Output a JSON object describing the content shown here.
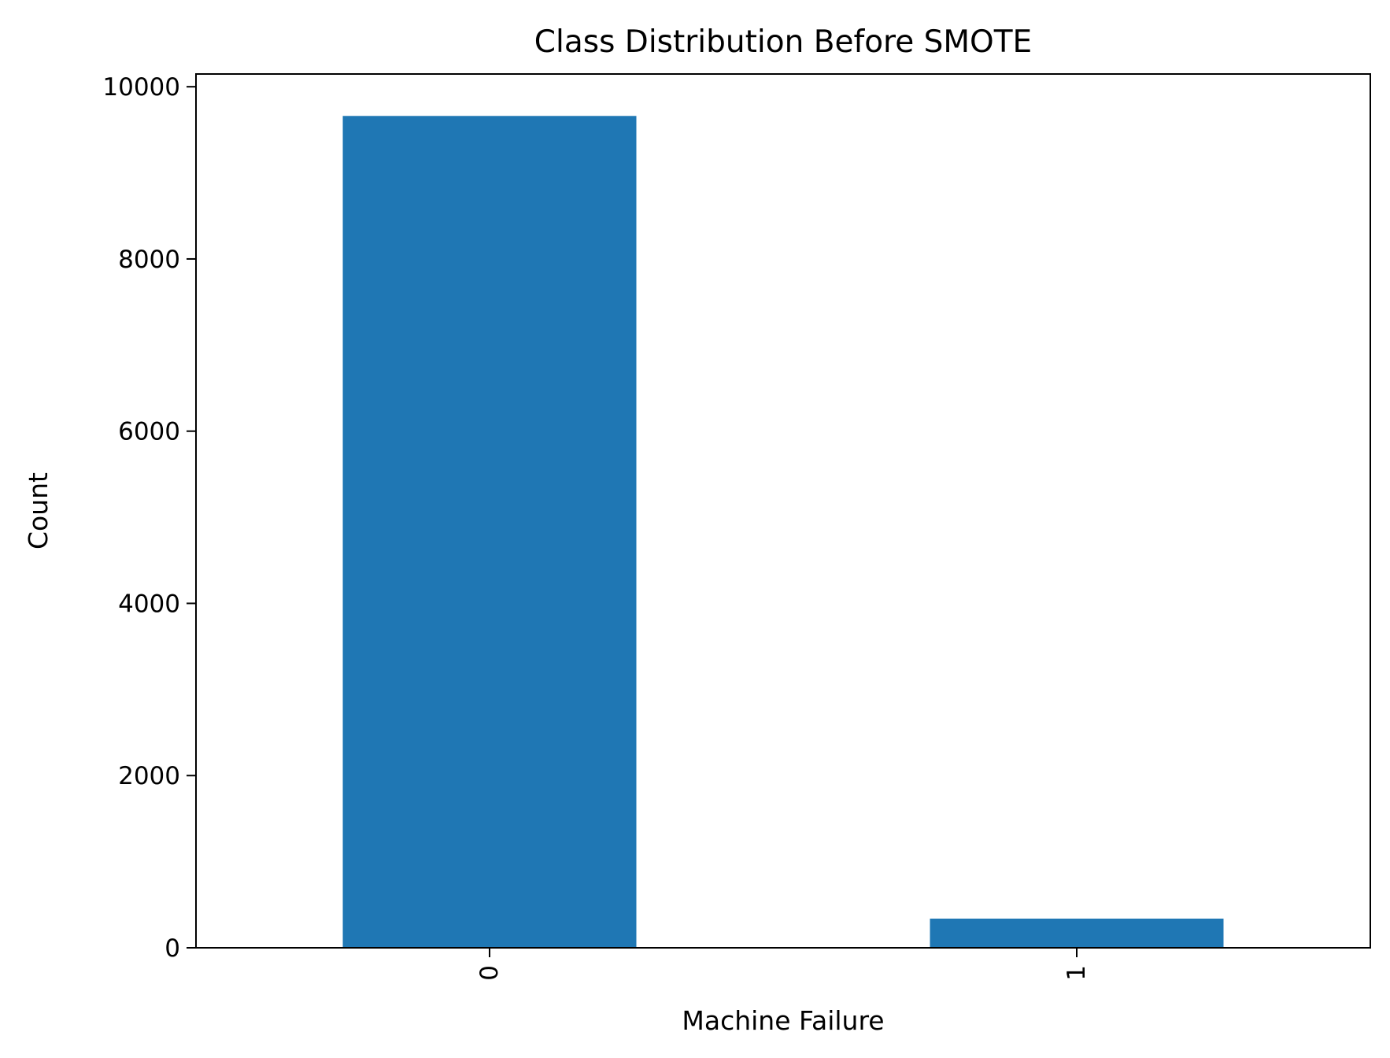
{
  "chart_data": {
    "type": "bar",
    "title": "Class Distribution Before SMOTE",
    "xlabel": "Machine Failure",
    "ylabel": "Count",
    "categories": [
      "0",
      "1"
    ],
    "values": [
      9661,
      339
    ],
    "ylim": [
      0,
      10148
    ],
    "yticks": [
      0,
      2000,
      4000,
      6000,
      8000,
      10000
    ],
    "ytick_labels": [
      "0",
      "2000",
      "4000",
      "6000",
      "8000",
      "10000"
    ],
    "xtick_rotation": 90,
    "grid": false,
    "legend": "none",
    "bar_color": "#1f77b4"
  }
}
